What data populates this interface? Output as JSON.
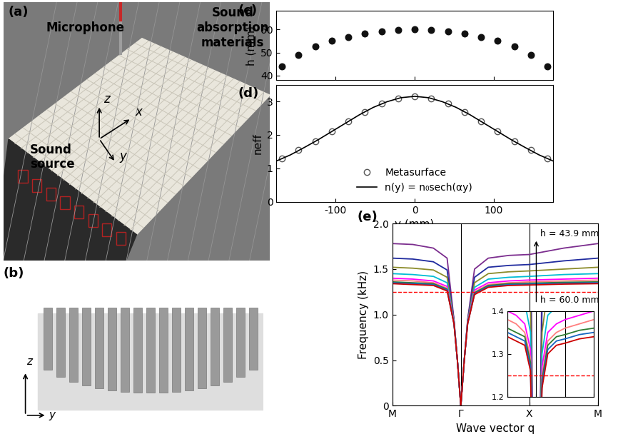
{
  "panels": {
    "a": {
      "label": "(a)",
      "texts": [
        "Microphone",
        "Sound\nabsorption\nmaterials",
        "Sound\nsource"
      ],
      "axes_labels": [
        "z",
        "x",
        "y"
      ]
    },
    "b": {
      "label": "(b)",
      "axes_labels": [
        "z",
        "y"
      ]
    }
  },
  "chart_data": [
    {
      "title": "(c)",
      "type": "scatter",
      "x": [
        -168,
        -147,
        -126,
        -105,
        -84,
        -63,
        -42,
        -21,
        0,
        21,
        42,
        63,
        84,
        105,
        126,
        147,
        168
      ],
      "values": [
        43.9,
        49.0,
        52.5,
        55.0,
        56.8,
        58.2,
        59.2,
        59.8,
        60.0,
        59.8,
        59.2,
        58.2,
        56.8,
        55.0,
        52.5,
        49.0,
        43.9
      ],
      "ylabel": "h (mm)",
      "xlim": [
        -175,
        175
      ],
      "ylim": [
        38,
        68
      ],
      "xticks": [
        -100,
        0,
        100
      ],
      "yticks": [
        40,
        50,
        60
      ],
      "tick_labels": "y",
      "color": "#111111",
      "marker": "o"
    },
    {
      "title": "(d)",
      "type": "scatter",
      "series": [
        {
          "name": "Metasurface",
          "type": "scatter",
          "marker": "o",
          "color": "#555555",
          "x": [
            -168,
            -147,
            -126,
            -105,
            -84,
            -63,
            -42,
            -21,
            0,
            21,
            42,
            63,
            84,
            105,
            126,
            147,
            168
          ],
          "values": [
            1.3,
            1.54,
            1.81,
            2.1,
            2.4,
            2.69,
            2.93,
            3.09,
            3.15,
            3.09,
            2.93,
            2.69,
            2.4,
            2.1,
            1.81,
            1.54,
            1.3
          ]
        },
        {
          "name": "n(y) = n₀sech(αy)",
          "type": "line",
          "line_style": "solid",
          "color": "#000000",
          "x": [
            -175,
            -157.5,
            -140,
            -122.5,
            -105,
            -87.5,
            -70,
            -52.5,
            -35,
            -17.5,
            0,
            17.5,
            35,
            52.5,
            70,
            87.5,
            105,
            122.5,
            140,
            157.5,
            175
          ],
          "values": [
            1.22,
            1.4,
            1.62,
            1.85,
            2.1,
            2.35,
            2.6,
            2.82,
            2.99,
            3.11,
            3.15,
            3.11,
            2.99,
            2.82,
            2.6,
            2.35,
            2.1,
            1.85,
            1.62,
            1.4,
            1.22
          ]
        }
      ],
      "xlabel": "y (mm)",
      "ylabel": "neff",
      "xlim": [
        -175,
        175
      ],
      "ylim": [
        0,
        3.5
      ],
      "xticks": [
        -100,
        0,
        100
      ],
      "yticks": [
        0,
        1,
        2,
        3
      ],
      "legend": "lower center"
    },
    {
      "title": "(e)",
      "type": "line",
      "x": [
        0,
        0.3,
        0.6,
        0.8,
        0.9,
        0.95,
        1.0,
        1.05,
        1.1,
        1.2,
        1.4,
        1.7,
        2.0,
        2.5,
        3.0
      ],
      "series": [
        {
          "color": "#7b2d8e",
          "values": [
            1.78,
            1.77,
            1.73,
            1.62,
            0.95,
            0.5,
            0,
            0.5,
            0.95,
            1.5,
            1.62,
            1.65,
            1.66,
            1.73,
            1.78
          ]
        },
        {
          "color": "#1f2a9e",
          "values": [
            1.62,
            1.61,
            1.58,
            1.49,
            0.94,
            0.5,
            0,
            0.5,
            0.94,
            1.41,
            1.52,
            1.54,
            1.55,
            1.59,
            1.62
          ]
        },
        {
          "color": "#8b8b2a",
          "values": [
            1.52,
            1.51,
            1.49,
            1.41,
            0.93,
            0.5,
            0,
            0.5,
            0.93,
            1.35,
            1.45,
            1.47,
            1.48,
            1.5,
            1.52
          ]
        },
        {
          "color": "#00bcd4",
          "values": [
            1.45,
            1.44,
            1.42,
            1.35,
            0.92,
            0.5,
            0,
            0.5,
            0.92,
            1.3,
            1.39,
            1.41,
            1.42,
            1.44,
            1.45
          ]
        },
        {
          "color": "#ff00ff",
          "values": [
            1.4,
            1.39,
            1.37,
            1.31,
            0.92,
            0.5,
            0,
            0.5,
            0.92,
            1.27,
            1.35,
            1.37,
            1.38,
            1.39,
            1.4
          ]
        },
        {
          "color": "#ff7f7f",
          "values": [
            1.38,
            1.37,
            1.35,
            1.29,
            0.91,
            0.5,
            0,
            0.5,
            0.91,
            1.25,
            1.33,
            1.35,
            1.36,
            1.37,
            1.38
          ]
        },
        {
          "color": "#2e7d32",
          "values": [
            1.36,
            1.35,
            1.34,
            1.28,
            0.91,
            0.5,
            0,
            0.5,
            0.91,
            1.24,
            1.32,
            1.34,
            1.345,
            1.355,
            1.36
          ]
        },
        {
          "color": "#1565c0",
          "values": [
            1.35,
            1.34,
            1.33,
            1.27,
            0.9,
            0.5,
            0,
            0.5,
            0.9,
            1.23,
            1.31,
            1.33,
            1.335,
            1.345,
            1.35
          ]
        },
        {
          "color": "#cc0000",
          "values": [
            1.34,
            1.33,
            1.32,
            1.26,
            0.9,
            0.5,
            0,
            0.5,
            0.9,
            1.22,
            1.3,
            1.32,
            1.325,
            1.335,
            1.34
          ]
        }
      ],
      "xlabel": "Wave vector q",
      "ylabel": "Frequency (kHz)",
      "xlim": [
        0,
        3
      ],
      "ylim": [
        0,
        2.0
      ],
      "xticks": [
        {
          "value": 0,
          "label": "M"
        },
        {
          "value": 1,
          "label": "Γ"
        },
        {
          "value": 2,
          "label": "X"
        },
        {
          "value": 3,
          "label": "M"
        }
      ],
      "yticks": [
        0,
        0.5,
        {
          "value": 1.0,
          "label": "1.0"
        },
        1.5,
        {
          "value": 2.0,
          "label": "2.0"
        }
      ],
      "grid": "x",
      "reference_frequency": 1.25,
      "annotations": [
        "h = 43.9 mm",
        "h = 60.0 mm"
      ],
      "inset": {
        "xlim": [
          0,
          3
        ],
        "ylim": [
          1.2,
          1.4
        ],
        "yticks": [
          1.2,
          1.3,
          1.4
        ]
      }
    }
  ]
}
